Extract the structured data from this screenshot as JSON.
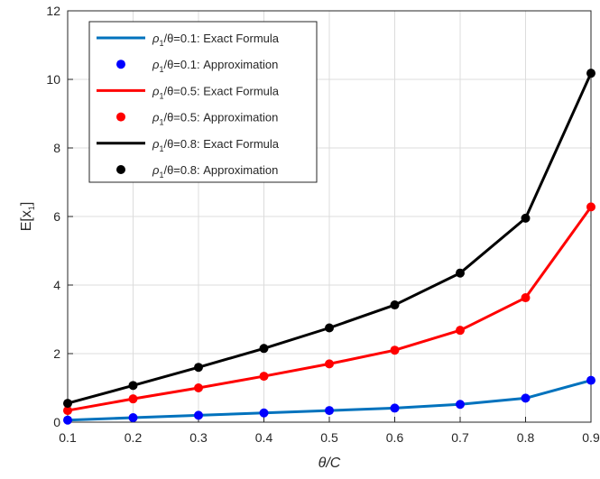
{
  "chart_data": {
    "type": "line",
    "title": "",
    "xlabel": "θ/C",
    "ylabel_main": "E[x",
    "ylabel_sub": "1",
    "ylabel_close": "]",
    "xlim": [
      0.1,
      0.9
    ],
    "ylim": [
      0,
      12
    ],
    "xticks": [
      "0.1",
      "0.2",
      "0.3",
      "0.4",
      "0.5",
      "0.6",
      "0.7",
      "0.8",
      "0.9"
    ],
    "yticks": [
      "0",
      "2",
      "4",
      "6",
      "8",
      "10",
      "12"
    ],
    "grid": true,
    "legend_position": "top-left",
    "x": [
      0.1,
      0.2,
      0.3,
      0.4,
      0.5,
      0.6,
      0.7,
      0.8,
      0.9
    ],
    "series": [
      {
        "name_rho": "ρ",
        "name_sub": "1",
        "name_rest": "/θ=0.1: Exact Formula",
        "style": "line",
        "color": "#0072BD",
        "values": [
          0.06,
          0.13,
          0.2,
          0.27,
          0.34,
          0.41,
          0.52,
          0.7,
          1.22
        ]
      },
      {
        "name_rho": "ρ",
        "name_sub": "1",
        "name_rest": "/θ=0.1: Approximation",
        "style": "marker",
        "color": "#0000FF",
        "values": [
          0.06,
          0.13,
          0.2,
          0.27,
          0.34,
          0.41,
          0.52,
          0.7,
          1.22
        ]
      },
      {
        "name_rho": "ρ",
        "name_sub": "1",
        "name_rest": "/θ=0.5: Exact Formula",
        "style": "line",
        "color": "#FF0000",
        "values": [
          0.34,
          0.68,
          1.0,
          1.34,
          1.7,
          2.1,
          2.68,
          3.63,
          6.28
        ]
      },
      {
        "name_rho": "ρ",
        "name_sub": "1",
        "name_rest": "/θ=0.5: Approximation",
        "style": "marker",
        "color": "#FF0000",
        "values": [
          0.34,
          0.68,
          1.0,
          1.34,
          1.7,
          2.1,
          2.68,
          3.63,
          6.28
        ]
      },
      {
        "name_rho": "ρ",
        "name_sub": "1",
        "name_rest": "/θ=0.8: Exact Formula",
        "style": "line",
        "color": "#000000",
        "values": [
          0.55,
          1.07,
          1.6,
          2.15,
          2.75,
          3.42,
          4.35,
          5.95,
          10.18
        ]
      },
      {
        "name_rho": "ρ",
        "name_sub": "1",
        "name_rest": "/θ=0.8: Approximation",
        "style": "marker",
        "color": "#000000",
        "values": [
          0.55,
          1.07,
          1.6,
          2.15,
          2.75,
          3.42,
          4.35,
          5.95,
          10.18
        ]
      }
    ]
  }
}
